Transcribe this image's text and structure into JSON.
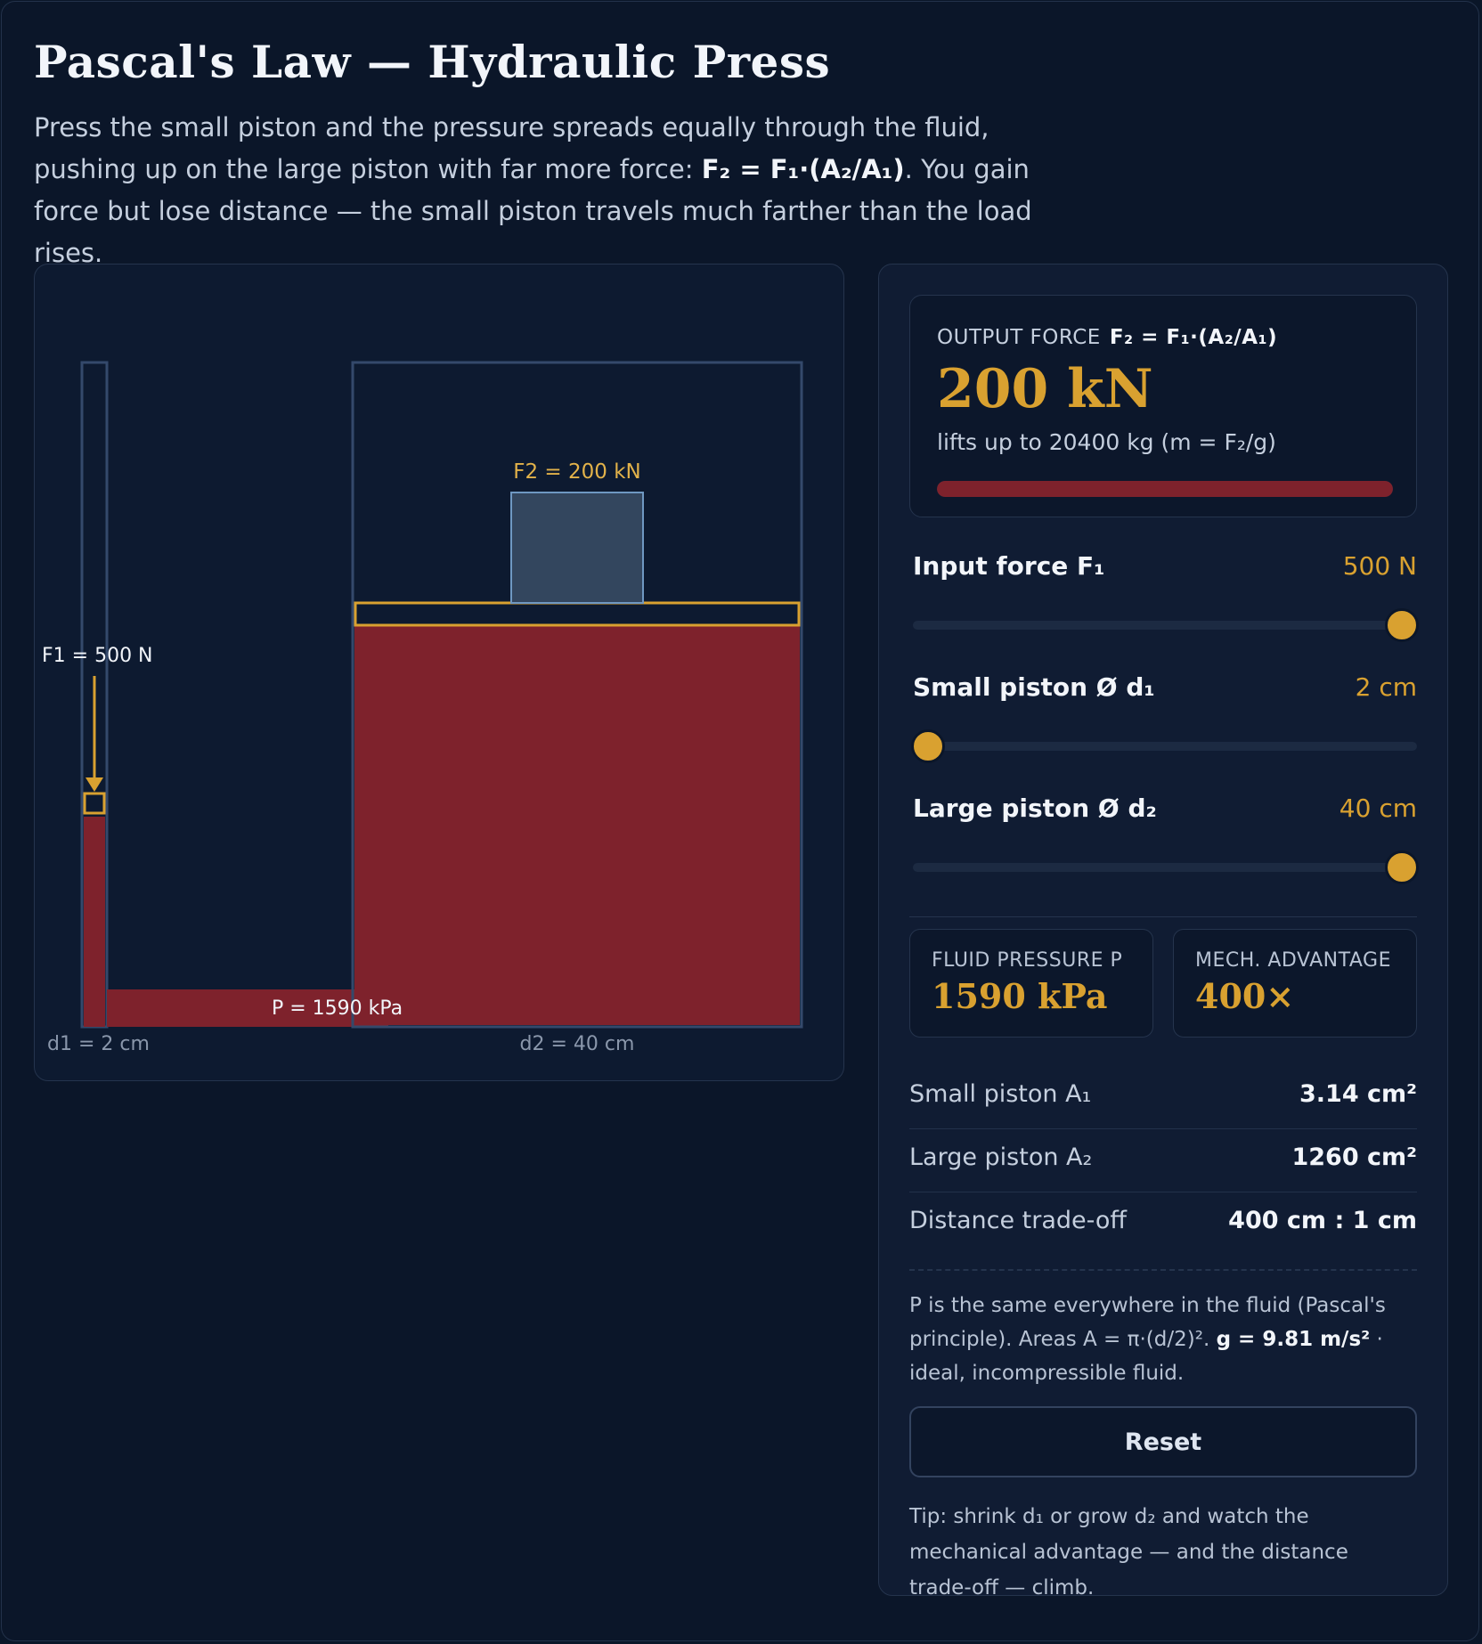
{
  "title": "Pascal's Law — Hydraulic Press",
  "intro": {
    "part1": "Press the small piston and the pressure spreads equally through the fluid, pushing up on the large piston with far more force: ",
    "formula": "F₂ = F₁·(A₂/A₁)",
    "part2": ". You gain force but lose distance — the small piston travels much farther than the load rises."
  },
  "sim": {
    "f1_label": "F1 = 500 N",
    "f2_label": "F2 = 200 kN",
    "pressure_label": "P = 1590 kPa",
    "d1_label": "d1 = 2 cm",
    "d2_label": "d2 = 40 cm"
  },
  "output": {
    "label": "OUTPUT FORCE",
    "formula": "F₂ = F₁·(A₂/A₁)",
    "value": "200 kN",
    "lifts": "lifts up to 20400 kg  (m = F₂/g)",
    "bar_fraction": 1.0
  },
  "controls": [
    {
      "label": "Input force F₁",
      "value": "500 N",
      "fraction": 1.0
    },
    {
      "label": "Small piston Ø d₁",
      "value": "2 cm",
      "fraction": 0.0
    },
    {
      "label": "Large piston Ø d₂",
      "value": "40 cm",
      "fraction": 1.0
    }
  ],
  "stats": {
    "pressure": {
      "label": "FLUID PRESSURE P",
      "value": "1590 kPa"
    },
    "advantage": {
      "label": "MECH. ADVANTAGE",
      "value": "400×"
    }
  },
  "rows": [
    {
      "label": "Small piston A₁",
      "value": "3.14 cm²"
    },
    {
      "label": "Large piston A₂",
      "value": "1260 cm²"
    },
    {
      "label": "Distance trade-off",
      "value": "400 cm : 1 cm"
    }
  ],
  "note": {
    "part1": "P is the same everywhere in the fluid (Pascal's principle). Areas A = π·(d/2)². ",
    "bold": "g = 9.81 m/s²",
    "part2": " · ideal, incompressible fluid."
  },
  "reset_label": "Reset",
  "tip": "Tip: shrink d₁ or grow d₂ and watch the mechanical advantage — and the distance trade-off — climb.",
  "colors": {
    "accent": "#d9a130",
    "fluid": "#7e222c",
    "background": "#0b1629"
  }
}
